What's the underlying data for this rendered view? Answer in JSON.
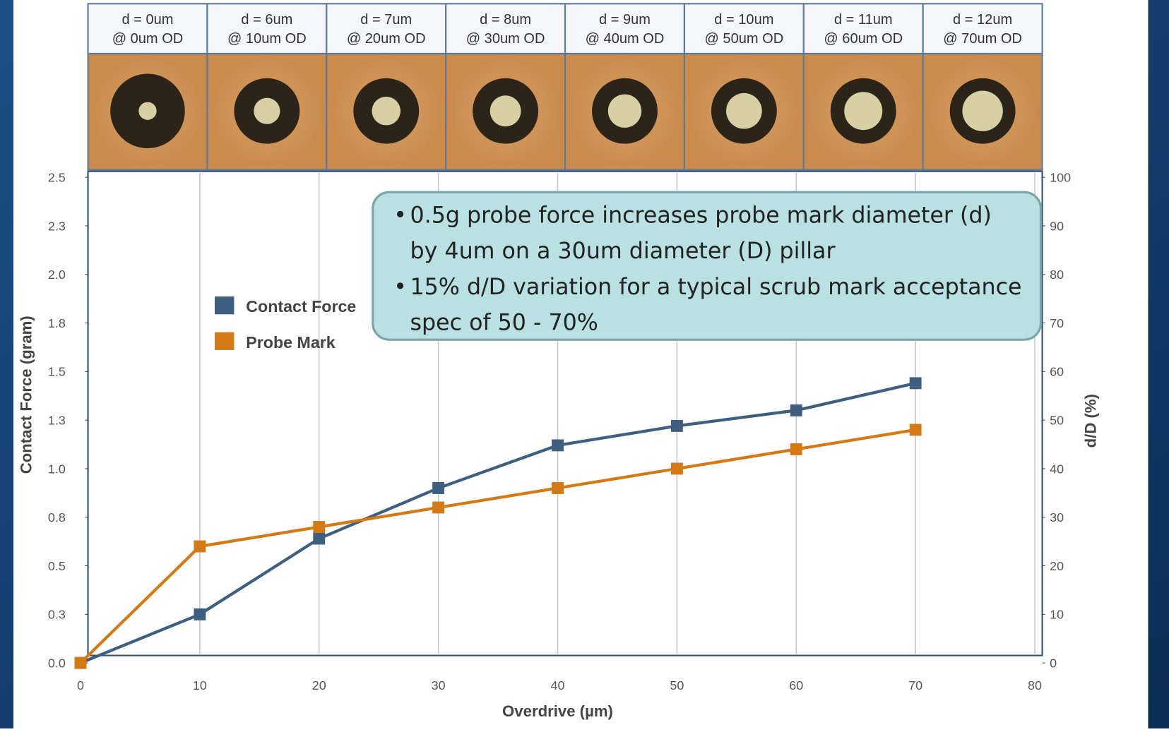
{
  "chart_data": {
    "type": "line",
    "image_labels": [
      [
        "d = 0um",
        "@ 0um OD"
      ],
      [
        "d = 6um",
        "@ 10um OD"
      ],
      [
        "d = 7um",
        "@ 20um OD"
      ],
      [
        "d = 8um",
        "@ 30um OD"
      ],
      [
        "d = 9um",
        "@ 40um OD"
      ],
      [
        "d = 10um",
        "@ 50um OD"
      ],
      [
        "d = 11um",
        "@ 60um OD"
      ],
      [
        "d = 12um",
        "@ 70um OD"
      ]
    ],
    "annotation": [
      "0.5g probe force increases probe mark diameter (d) by 4um on a 30um diameter (D) pillar",
      "15% d/D variation  for a typical scrub mark acceptance spec of 50 - 70%"
    ],
    "xlabel": "Overdrive (µm)",
    "ylabel": "Contact Force (gram)",
    "y2label": "d/D (%)",
    "x": [
      0,
      10,
      20,
      30,
      40,
      50,
      60,
      70
    ],
    "series": [
      {
        "name": "Contact Force",
        "color": "#3f5f80",
        "values": [
          0,
          0.25,
          0.64,
          0.9,
          1.12,
          1.22,
          1.3,
          1.44
        ]
      },
      {
        "name": "Probe Mark",
        "color": "#d47a14",
        "axis": "y2",
        "values": [
          0,
          24,
          28,
          32,
          36,
          40,
          44,
          48
        ]
      }
    ],
    "xlim": [
      0,
      80
    ],
    "xticks": [
      0,
      10,
      20,
      30,
      40,
      50,
      60,
      70,
      80
    ],
    "ylim": [
      0,
      2.5
    ],
    "yticks": [
      {
        "value": 0,
        "label": "0.0"
      },
      {
        "value": 0.25,
        "label": "0.3"
      },
      {
        "value": 0.5,
        "label": "0.5"
      },
      {
        "value": 0.75,
        "label": "0.8"
      },
      {
        "value": 1,
        "label": "1.0"
      },
      {
        "value": 1.25,
        "label": "1.3"
      },
      {
        "value": 1.5,
        "label": "1.5"
      },
      {
        "value": 1.75,
        "label": "1.8"
      },
      {
        "value": 2,
        "label": "2.0"
      },
      {
        "value": 2.25,
        "label": "2.3"
      },
      {
        "value": 2.5,
        "label": "2.5"
      }
    ],
    "y2lim": [
      0,
      100
    ],
    "y2ticks": [
      0,
      10,
      20,
      30,
      40,
      50,
      60,
      70,
      80,
      90,
      100
    ],
    "grid": true
  }
}
